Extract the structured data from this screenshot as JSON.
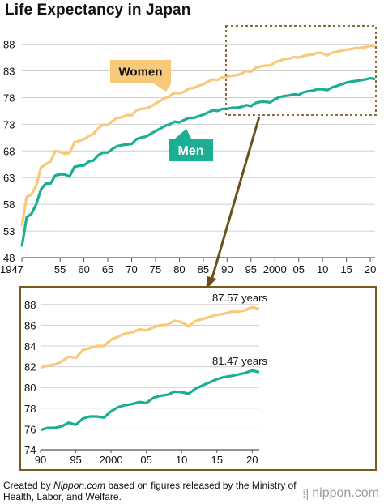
{
  "title": "Life Expectancy in Japan",
  "credit": {
    "prefix": "Created by",
    "source": "Nippon.com",
    "suffix": "based on figures released by the Ministry of Health, Labor, and Welfare."
  },
  "brand": {
    "icon": "nippon-logo-icon",
    "text": "nippon.com"
  },
  "colors": {
    "women": "#f8c97a",
    "men": "#1aae93",
    "arrow": "#6b5019",
    "zoom_box": "#7a5a20"
  },
  "chart_data": [
    {
      "type": "line",
      "title": "Life Expectancy in Japan",
      "ylim": [
        48,
        89
      ],
      "y_ticks": [
        48,
        53,
        58,
        63,
        68,
        73,
        78,
        83,
        88
      ],
      "xlim": [
        1947,
        2021
      ],
      "x_ticks": [
        {
          "year": 1947,
          "label": "1947"
        },
        {
          "year": 1955,
          "label": "55"
        },
        {
          "year": 1960,
          "label": "60"
        },
        {
          "year": 1965,
          "label": "65"
        },
        {
          "year": 1970,
          "label": "70"
        },
        {
          "year": 1975,
          "label": "75"
        },
        {
          "year": 1980,
          "label": "80"
        },
        {
          "year": 1985,
          "label": "85"
        },
        {
          "year": 1990,
          "label": "90"
        },
        {
          "year": 1995,
          "label": "95"
        },
        {
          "year": 2000,
          "label": "2000"
        },
        {
          "year": 2005,
          "label": "05"
        },
        {
          "year": 2010,
          "label": "10"
        },
        {
          "year": 2015,
          "label": "15"
        },
        {
          "year": 2020,
          "label": "20"
        }
      ],
      "grid": true,
      "series": [
        {
          "name": "Women",
          "x": [
            1947,
            1948,
            1949,
            1950,
            1951,
            1952,
            1953,
            1954,
            1955,
            1956,
            1957,
            1958,
            1959,
            1960,
            1961,
            1962,
            1963,
            1964,
            1965,
            1966,
            1967,
            1968,
            1969,
            1970,
            1971,
            1972,
            1973,
            1974,
            1975,
            1976,
            1977,
            1978,
            1979,
            1980,
            1981,
            1982,
            1983,
            1984,
            1985,
            1986,
            1987,
            1988,
            1989,
            1990,
            1991,
            1992,
            1993,
            1994,
            1995,
            1996,
            1997,
            1998,
            1999,
            2000,
            2001,
            2002,
            2003,
            2004,
            2005,
            2006,
            2007,
            2008,
            2009,
            2010,
            2011,
            2012,
            2013,
            2014,
            2015,
            2016,
            2017,
            2018,
            2019,
            2020,
            2021
          ],
          "values": [
            53.96,
            59.4,
            59.8,
            61.5,
            64.9,
            65.5,
            66.0,
            68.0,
            67.8,
            67.5,
            67.6,
            69.6,
            69.9,
            70.2,
            70.8,
            71.2,
            72.3,
            72.9,
            72.9,
            73.6,
            74.2,
            74.3,
            74.7,
            74.7,
            75.6,
            75.9,
            76.0,
            76.3,
            76.9,
            77.4,
            77.9,
            78.3,
            78.9,
            78.8,
            79.1,
            79.7,
            79.8,
            80.2,
            80.5,
            81.0,
            81.4,
            81.3,
            81.8,
            81.9,
            82.1,
            82.2,
            82.5,
            82.98,
            82.85,
            83.6,
            83.8,
            84.0,
            84.0,
            84.6,
            84.9,
            85.2,
            85.3,
            85.6,
            85.5,
            85.8,
            86.0,
            86.05,
            86.44,
            86.3,
            85.9,
            86.41,
            86.6,
            86.8,
            87.0,
            87.1,
            87.3,
            87.3,
            87.45,
            87.74,
            87.57
          ]
        },
        {
          "name": "Men",
          "x": [
            1947,
            1948,
            1949,
            1950,
            1951,
            1952,
            1953,
            1954,
            1955,
            1956,
            1957,
            1958,
            1959,
            1960,
            1961,
            1962,
            1963,
            1964,
            1965,
            1966,
            1967,
            1968,
            1969,
            1970,
            1971,
            1972,
            1973,
            1974,
            1975,
            1976,
            1977,
            1978,
            1979,
            1980,
            1981,
            1982,
            1983,
            1984,
            1985,
            1986,
            1987,
            1988,
            1989,
            1990,
            1991,
            1992,
            1993,
            1994,
            1995,
            1996,
            1997,
            1998,
            1999,
            2000,
            2001,
            2002,
            2003,
            2004,
            2005,
            2006,
            2007,
            2008,
            2009,
            2010,
            2011,
            2012,
            2013,
            2014,
            2015,
            2016,
            2017,
            2018,
            2019,
            2020,
            2021
          ],
          "values": [
            50.06,
            55.6,
            56.2,
            58.0,
            60.8,
            61.9,
            61.9,
            63.4,
            63.6,
            63.6,
            63.2,
            65.0,
            65.2,
            65.3,
            66.0,
            66.2,
            67.2,
            67.7,
            67.7,
            68.4,
            68.9,
            69.1,
            69.2,
            69.3,
            70.2,
            70.5,
            70.7,
            71.2,
            71.7,
            72.2,
            72.7,
            73.0,
            73.5,
            73.35,
            73.8,
            74.2,
            74.2,
            74.5,
            74.8,
            75.2,
            75.6,
            75.5,
            75.9,
            75.9,
            76.1,
            76.1,
            76.25,
            76.6,
            76.4,
            77.0,
            77.2,
            77.2,
            77.1,
            77.7,
            78.1,
            78.3,
            78.4,
            78.6,
            78.5,
            79.0,
            79.2,
            79.3,
            79.6,
            79.55,
            79.4,
            79.9,
            80.2,
            80.5,
            80.8,
            81.0,
            81.1,
            81.25,
            81.4,
            81.64,
            81.47
          ]
        }
      ],
      "annotations": [
        "Women",
        "Men"
      ]
    },
    {
      "type": "line",
      "note": "zoomed inset of 1990-2021",
      "ylim": [
        74,
        89
      ],
      "y_ticks": [
        74,
        76,
        78,
        80,
        82,
        84,
        86,
        88
      ],
      "xlim": [
        1990,
        2021
      ],
      "x_ticks": [
        {
          "year": 1990,
          "label": "90"
        },
        {
          "year": 1995,
          "label": "95"
        },
        {
          "year": 2000,
          "label": "2000"
        },
        {
          "year": 2005,
          "label": "05"
        },
        {
          "year": 2010,
          "label": "10"
        },
        {
          "year": 2015,
          "label": "15"
        },
        {
          "year": 2020,
          "label": "20"
        }
      ],
      "grid": true,
      "annotations": [
        "87.57 years",
        "81.47 years"
      ]
    }
  ]
}
